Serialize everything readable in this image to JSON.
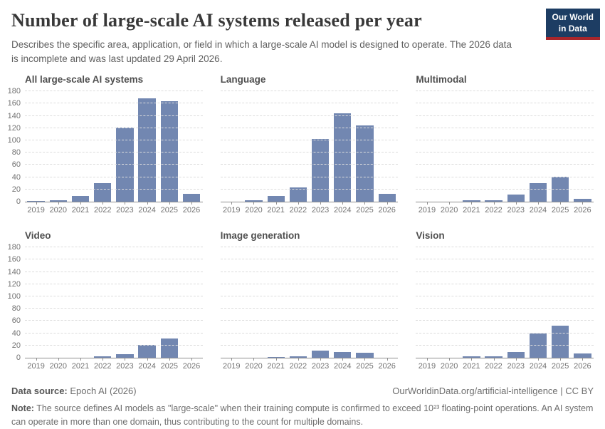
{
  "header": {
    "title": "Number of large-scale AI systems released per year",
    "subtitle": "Describes the specific area, application, or field in which a large-scale AI model is designed to operate. The 2026 data is incomplete and was last updated 29 April 2026.",
    "logo": {
      "line1": "Our World",
      "line2": "in Data",
      "bg_color": "#1d3d63",
      "accent_color": "#a8262b"
    }
  },
  "chart_data": {
    "type": "bar",
    "layout": "small-multiples 2 rows x 3 columns",
    "categories": [
      "2019",
      "2020",
      "2021",
      "2022",
      "2023",
      "2024",
      "2025",
      "2026"
    ],
    "ylim": [
      0,
      180
    ],
    "ytick_interval": 20,
    "grid": "horizontal dashed gridlines on",
    "legend": "none",
    "bar_color": "#7287b1",
    "panels": [
      {
        "title": "All large-scale AI systems",
        "values": [
          1,
          2,
          10,
          30,
          121,
          168,
          164,
          13
        ],
        "show_y_axis": true
      },
      {
        "title": "Language",
        "values": [
          0,
          2,
          10,
          23,
          102,
          144,
          124,
          13
        ],
        "show_y_axis": false
      },
      {
        "title": "Multimodal",
        "values": [
          0,
          0,
          2,
          2,
          12,
          30,
          41,
          5
        ],
        "show_y_axis": false
      },
      {
        "title": "Video",
        "values": [
          0,
          0,
          0,
          2,
          6,
          21,
          32,
          0
        ],
        "show_y_axis": true
      },
      {
        "title": "Image generation",
        "values": [
          0,
          0,
          1,
          3,
          12,
          9,
          8,
          0
        ],
        "show_y_axis": false
      },
      {
        "title": "Vision",
        "values": [
          0,
          0,
          2,
          2,
          10,
          40,
          53,
          7
        ],
        "show_y_axis": false
      }
    ]
  },
  "footer": {
    "source_label": "Data source:",
    "source_value": " Epoch AI (2026)",
    "attribution": "OurWorldinData.org/artificial-intelligence | CC BY",
    "note_label": "Note:",
    "note_value": " The source defines AI models as \"large-scale\" when their training compute is confirmed to exceed 10²³ floating-point operations. An AI system can operate in more than one domain, thus contributing to the count for multiple domains."
  }
}
